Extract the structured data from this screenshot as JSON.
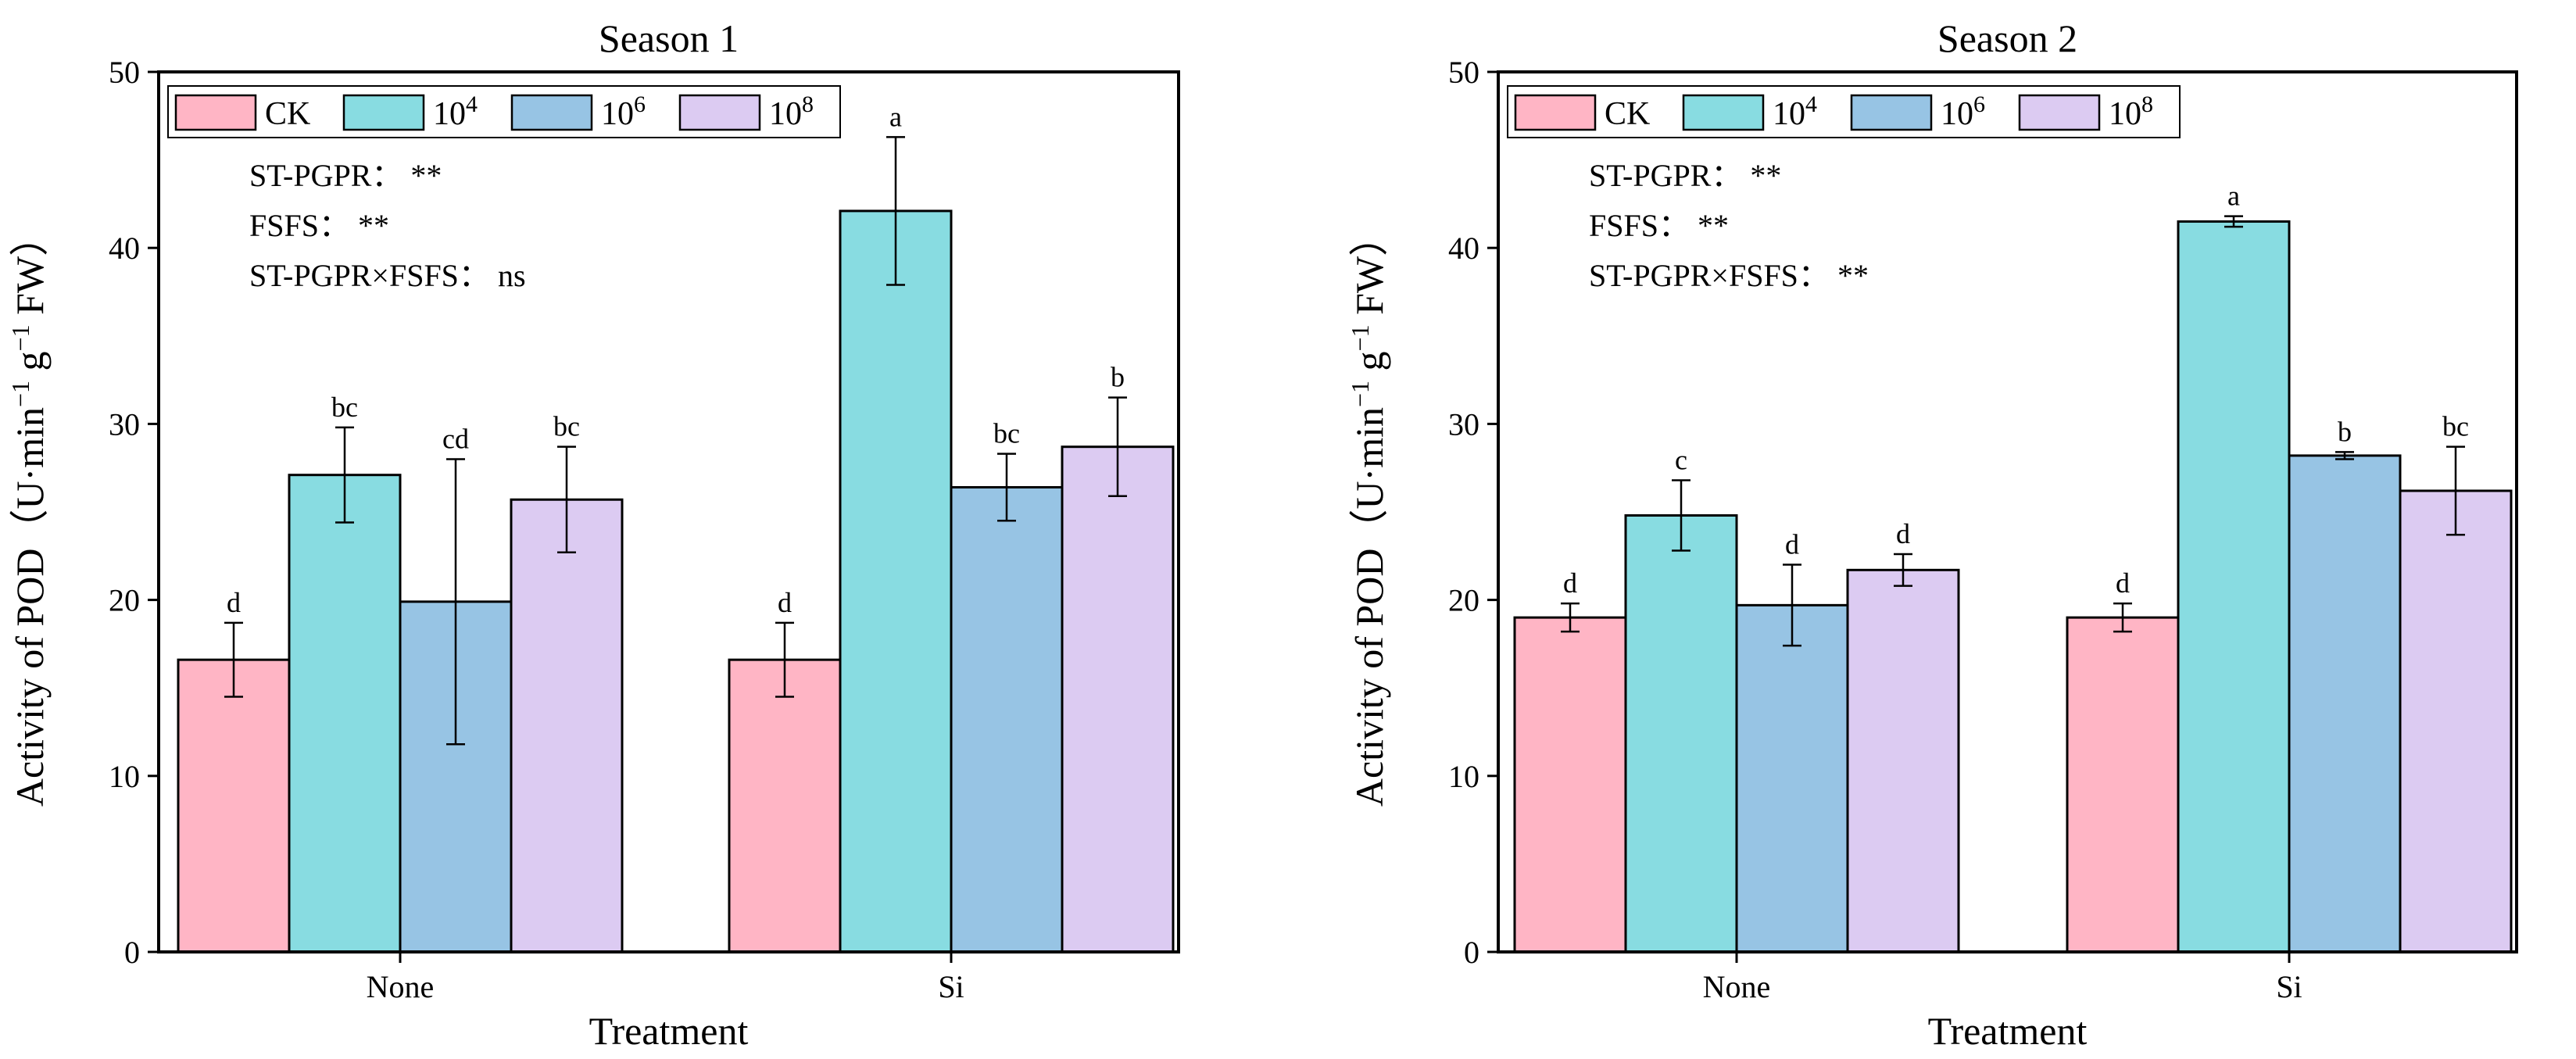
{
  "chart_data": [
    {
      "type": "bar",
      "title": "Season 1",
      "xlabel": "Treatment",
      "ylabel_main": "Activity of POD（U·min",
      "ylabel_sup1": "−1",
      "ylabel_mid": " g",
      "ylabel_sup2": "−1",
      "ylabel_end": " FW）",
      "ylim": [
        0,
        50
      ],
      "yticks": [
        "0",
        "10",
        "20",
        "30",
        "40",
        "50"
      ],
      "categories": [
        "None",
        "Si"
      ],
      "series": [
        {
          "name": "CK",
          "base": "",
          "sup": "",
          "color": "#FFB5C5",
          "values": [
            16.6,
            16.6
          ],
          "errors": [
            2.1,
            2.1
          ],
          "letters": [
            "d",
            "d"
          ]
        },
        {
          "name": "10^4",
          "base": "10",
          "sup": "4",
          "color": "#88DCE1",
          "values": [
            27.1,
            42.1
          ],
          "errors": [
            2.7,
            4.2
          ],
          "letters": [
            "bc",
            "a"
          ]
        },
        {
          "name": "10^6",
          "base": "10",
          "sup": "6",
          "color": "#97C4E4",
          "values": [
            19.9,
            26.4
          ],
          "errors": [
            8.1,
            1.9
          ],
          "letters": [
            "cd",
            "bc"
          ]
        },
        {
          "name": "10^8",
          "base": "10",
          "sup": "8",
          "color": "#DCCBF2",
          "values": [
            25.7,
            28.7
          ],
          "errors": [
            3.0,
            2.8
          ],
          "letters": [
            "bc",
            "b"
          ]
        }
      ],
      "annotations": [
        {
          "label": "ST-PGPR：",
          "sig": "**"
        },
        {
          "label": "FSFS：",
          "sig": "**"
        },
        {
          "label": "ST-PGPR×FSFS：",
          "sig": "ns"
        }
      ]
    },
    {
      "type": "bar",
      "title": "Season 2",
      "xlabel": "Treatment",
      "ylabel_main": "Activity of POD（U·min",
      "ylabel_sup1": "−1",
      "ylabel_mid": " g",
      "ylabel_sup2": "−1",
      "ylabel_end": " FW）",
      "ylim": [
        0,
        50
      ],
      "yticks": [
        "0",
        "10",
        "20",
        "30",
        "40",
        "50"
      ],
      "categories": [
        "None",
        "Si"
      ],
      "series": [
        {
          "name": "CK",
          "base": "",
          "sup": "",
          "color": "#FFB5C5",
          "values": [
            19.0,
            19.0
          ],
          "errors": [
            0.8,
            0.8
          ],
          "letters": [
            "d",
            "d"
          ]
        },
        {
          "name": "10^4",
          "base": "10",
          "sup": "4",
          "color": "#88DCE1",
          "values": [
            24.8,
            41.5
          ],
          "errors": [
            2.0,
            0.3
          ],
          "letters": [
            "c",
            "a"
          ]
        },
        {
          "name": "10^6",
          "base": "10",
          "sup": "6",
          "color": "#97C4E4",
          "values": [
            19.7,
            28.2
          ],
          "errors": [
            2.3,
            0.2
          ],
          "letters": [
            "d",
            "b"
          ]
        },
        {
          "name": "10^8",
          "base": "10",
          "sup": "8",
          "color": "#DCCBF2",
          "values": [
            21.7,
            26.2
          ],
          "errors": [
            0.9,
            2.5
          ],
          "letters": [
            "d",
            "bc"
          ]
        }
      ],
      "annotations": [
        {
          "label": "ST-PGPR：",
          "sig": "**"
        },
        {
          "label": "FSFS：",
          "sig": "**"
        },
        {
          "label": "ST-PGPR×FSFS：",
          "sig": "**"
        }
      ]
    }
  ]
}
